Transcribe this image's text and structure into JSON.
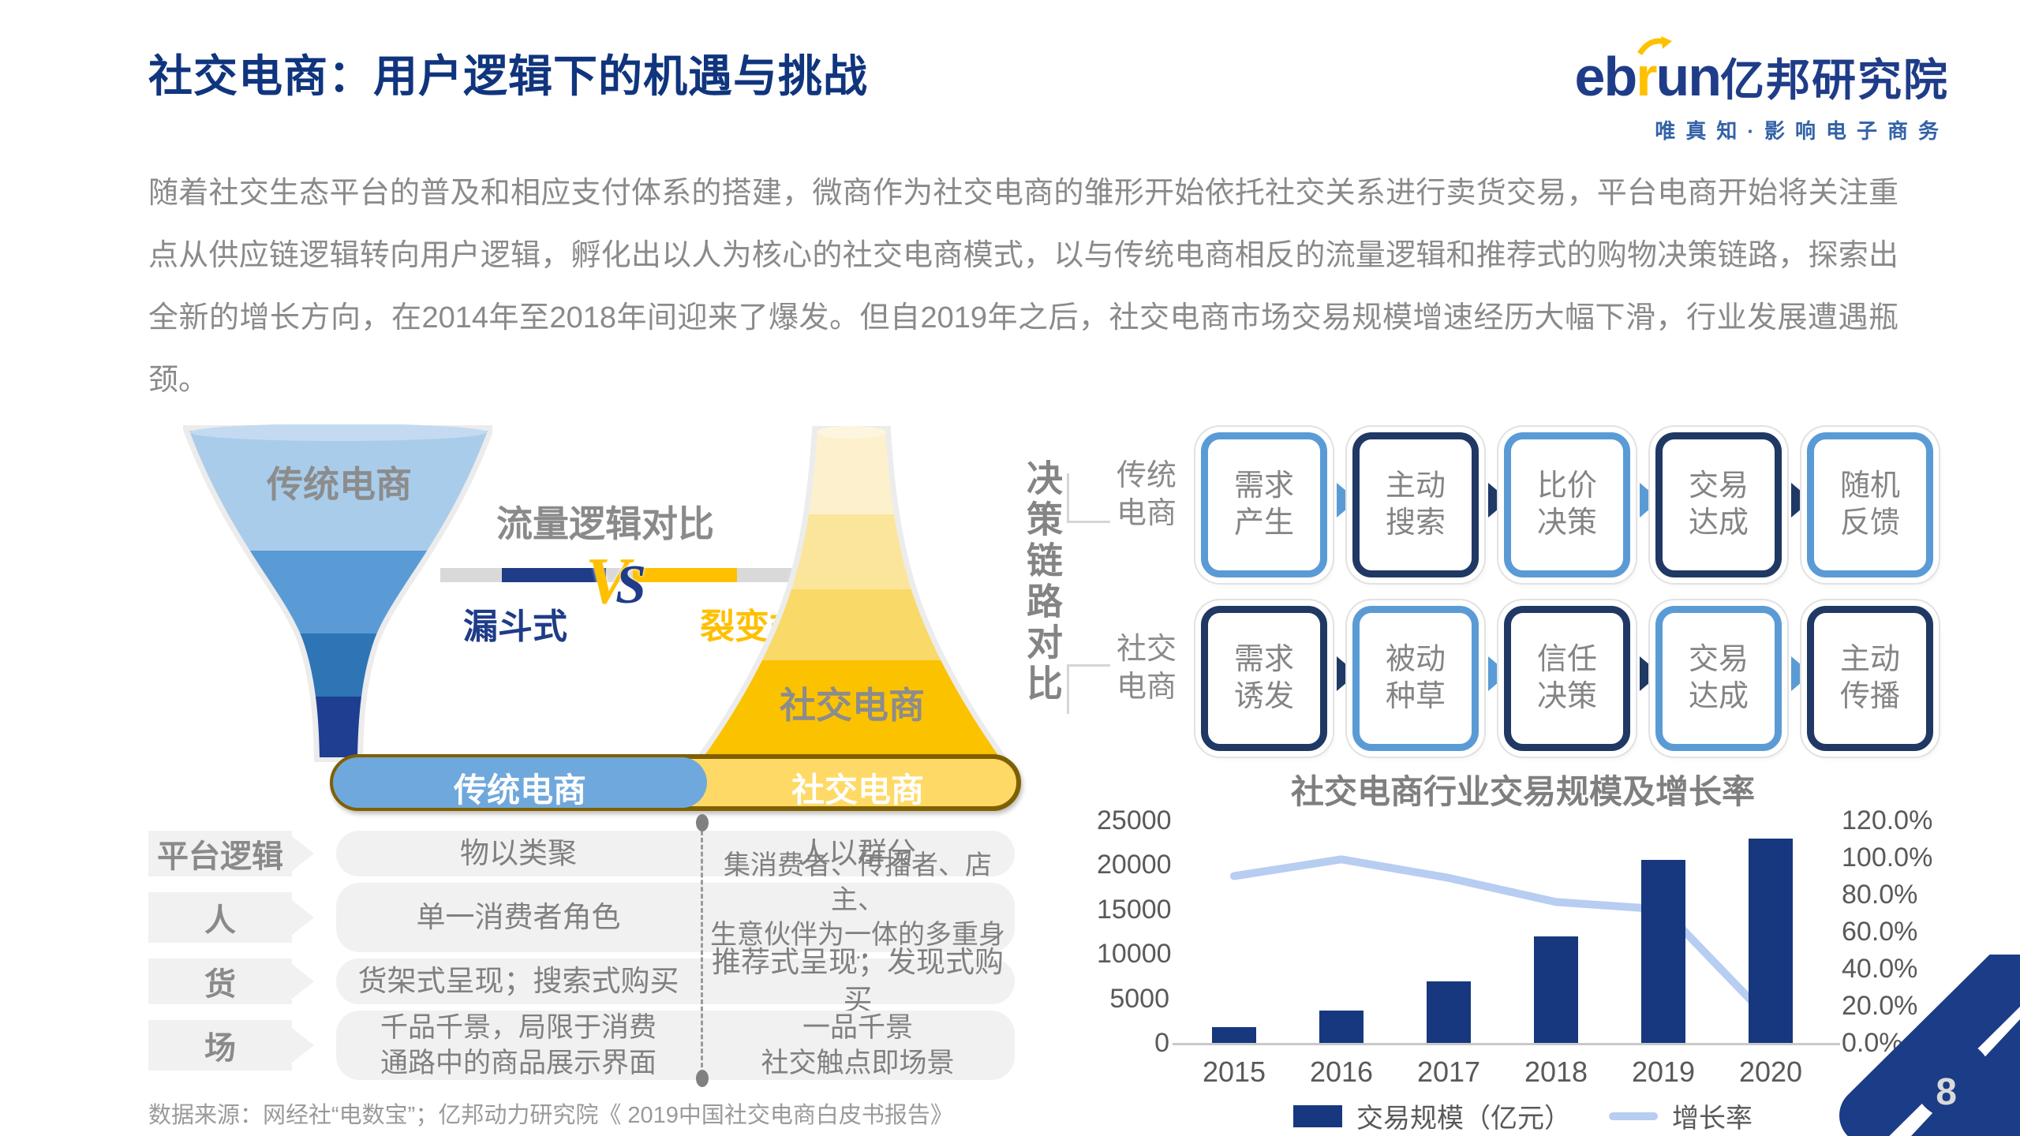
{
  "header": {
    "title": "社交电商：用户逻辑下的机遇与挑战",
    "logo": {
      "eb": "eb",
      "r": "r",
      "un": "un",
      "cn": "亿邦研究院",
      "tagline": "唯真知·影响电子商务"
    }
  },
  "intro": {
    "text": "随着社交生态平台的普及和相应支付体系的搭建，微商作为社交电商的雏形开始依托社交关系进行卖货交易，平台电商开始将关注重点从供应链逻辑转向用户逻辑，孵化出以人为核心的社交电商模式，以与传统电商相反的流量逻辑和推荐式的购物决策链路，探索出全新的增长方向，在2014年至2018年间迎来了爆发。但自2019年之后，社交电商市场交易规模增速经历大幅下滑，行业发展遭遇瓶颈。"
  },
  "flow_compare": {
    "title": "流量逻辑对比",
    "vs_v": "V",
    "vs_s": "S",
    "left_type": "漏斗式",
    "right_type": "裂变式",
    "left_funnel_label": "传统电商",
    "right_funnel_label": "社交电商"
  },
  "decision": {
    "title": "决策链路对比",
    "rows": [
      {
        "label_line1": "传统",
        "label_line2": "电商",
        "steps": [
          {
            "l1": "需求",
            "l2": "产生"
          },
          {
            "l1": "主动",
            "l2": "搜索"
          },
          {
            "l1": "比价",
            "l2": "决策"
          },
          {
            "l1": "交易",
            "l2": "达成"
          },
          {
            "l1": "随机",
            "l2": "反馈"
          }
        ]
      },
      {
        "label_line1": "社交",
        "label_line2": "电商",
        "steps": [
          {
            "l1": "需求",
            "l2": "诱发"
          },
          {
            "l1": "被动",
            "l2": "种草"
          },
          {
            "l1": "信任",
            "l2": "决策"
          },
          {
            "l1": "交易",
            "l2": "达成"
          },
          {
            "l1": "主动",
            "l2": "传播"
          }
        ]
      }
    ]
  },
  "table": {
    "header_left": "传统电商",
    "header_right": "社交电商",
    "rows": [
      {
        "tag": "平台逻辑",
        "left": [
          "物以类聚"
        ],
        "right": [
          "人以群分"
        ]
      },
      {
        "tag": "人",
        "left": [
          "单一消费者角色"
        ],
        "right": [
          "集消费者、传播者、店主、",
          "生意伙伴为一体的多重身份"
        ]
      },
      {
        "tag": "货",
        "left": [
          "货架式呈现；搜索式购买"
        ],
        "right": [
          "推荐式呈现；发现式购买"
        ]
      },
      {
        "tag": "场",
        "left": [
          "千品千景，局限于消费",
          "通路中的商品展示界面"
        ],
        "right": [
          "一品千景",
          "社交触点即场景"
        ]
      }
    ]
  },
  "chart_data": {
    "type": "bar",
    "title": "社交电商行业交易规模及增长率",
    "categories": [
      "2015",
      "2016",
      "2017",
      "2018",
      "2019",
      "2020"
    ],
    "series": [
      {
        "name": "交易规模（亿元）",
        "type": "bar",
        "values": [
          1800,
          3600,
          6900,
          12000,
          20600,
          23000
        ]
      },
      {
        "name": "增长率",
        "type": "line",
        "values": [
          90,
          99,
          89,
          76,
          72,
          12
        ]
      }
    ],
    "y_left": {
      "ticks": [
        0,
        5000,
        10000,
        15000,
        20000,
        25000
      ],
      "max": 25000
    },
    "y_right": {
      "ticks": [
        "0.0%",
        "20.0%",
        "40.0%",
        "60.0%",
        "80.0%",
        "100.0%",
        "120.0%"
      ],
      "max": 120
    },
    "legend": [
      "交易规模（亿元）",
      "增长率"
    ],
    "grid": false,
    "legend_position": "bottom"
  },
  "footer": {
    "source": "数据来源：网经社“电数宝”；亿邦动力研究院《 2019中国社交电商白皮书报告》",
    "page": "8"
  },
  "colors": {
    "navy": "#17387E",
    "mid_blue": "#5B9BD5",
    "light_blue": "#A9CCEB",
    "deep_blue": "#2E75B6",
    "pale_line_blue": "#B7CDF1",
    "gold": "#FFC000",
    "light_gold": "#FFD966",
    "pale_gold": "#FFE699",
    "cream": "#FFF2CC",
    "gray_text": "#808080",
    "pill_blue": "#6FA8DC",
    "pill_border": "#7F6000",
    "stripe": "#F1F1F2"
  }
}
